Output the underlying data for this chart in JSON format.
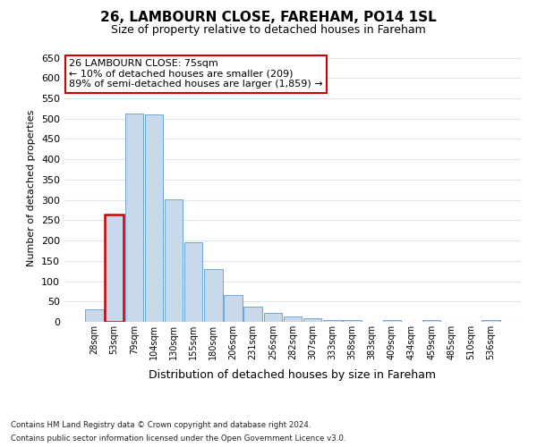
{
  "title_line1": "26, LAMBOURN CLOSE, FAREHAM, PO14 1SL",
  "title_line2": "Size of property relative to detached houses in Fareham",
  "xlabel": "Distribution of detached houses by size in Fareham",
  "ylabel": "Number of detached properties",
  "bar_labels": [
    "28sqm",
    "53sqm",
    "79sqm",
    "104sqm",
    "130sqm",
    "155sqm",
    "180sqm",
    "206sqm",
    "231sqm",
    "256sqm",
    "282sqm",
    "307sqm",
    "333sqm",
    "358sqm",
    "383sqm",
    "409sqm",
    "434sqm",
    "459sqm",
    "485sqm",
    "510sqm",
    "536sqm"
  ],
  "bar_values": [
    30,
    263,
    512,
    510,
    302,
    196,
    130,
    65,
    38,
    22,
    14,
    8,
    5,
    4,
    1,
    4,
    1,
    5,
    0,
    1,
    5
  ],
  "bar_color": "#c8d9eb",
  "bar_edge_color": "#5b9bd5",
  "highlight_index": 1,
  "highlight_edge_color": "#cc0000",
  "annotation_text": "26 LAMBOURN CLOSE: 75sqm\n← 10% of detached houses are smaller (209)\n89% of semi-detached houses are larger (1,859) →",
  "annotation_box_edge": "#cc0000",
  "ylim": [
    0,
    660
  ],
  "yticks": [
    0,
    50,
    100,
    150,
    200,
    250,
    300,
    350,
    400,
    450,
    500,
    550,
    600,
    650
  ],
  "grid_color": "#dce6f1",
  "footnote_line1": "Contains HM Land Registry data © Crown copyright and database right 2024.",
  "footnote_line2": "Contains public sector information licensed under the Open Government Licence v3.0.",
  "bg_color": "#ffffff",
  "title_fontsize": 11,
  "subtitle_fontsize": 9,
  "ylabel_fontsize": 8,
  "xlabel_fontsize": 9,
  "tick_fontsize": 8,
  "xtick_fontsize": 7
}
